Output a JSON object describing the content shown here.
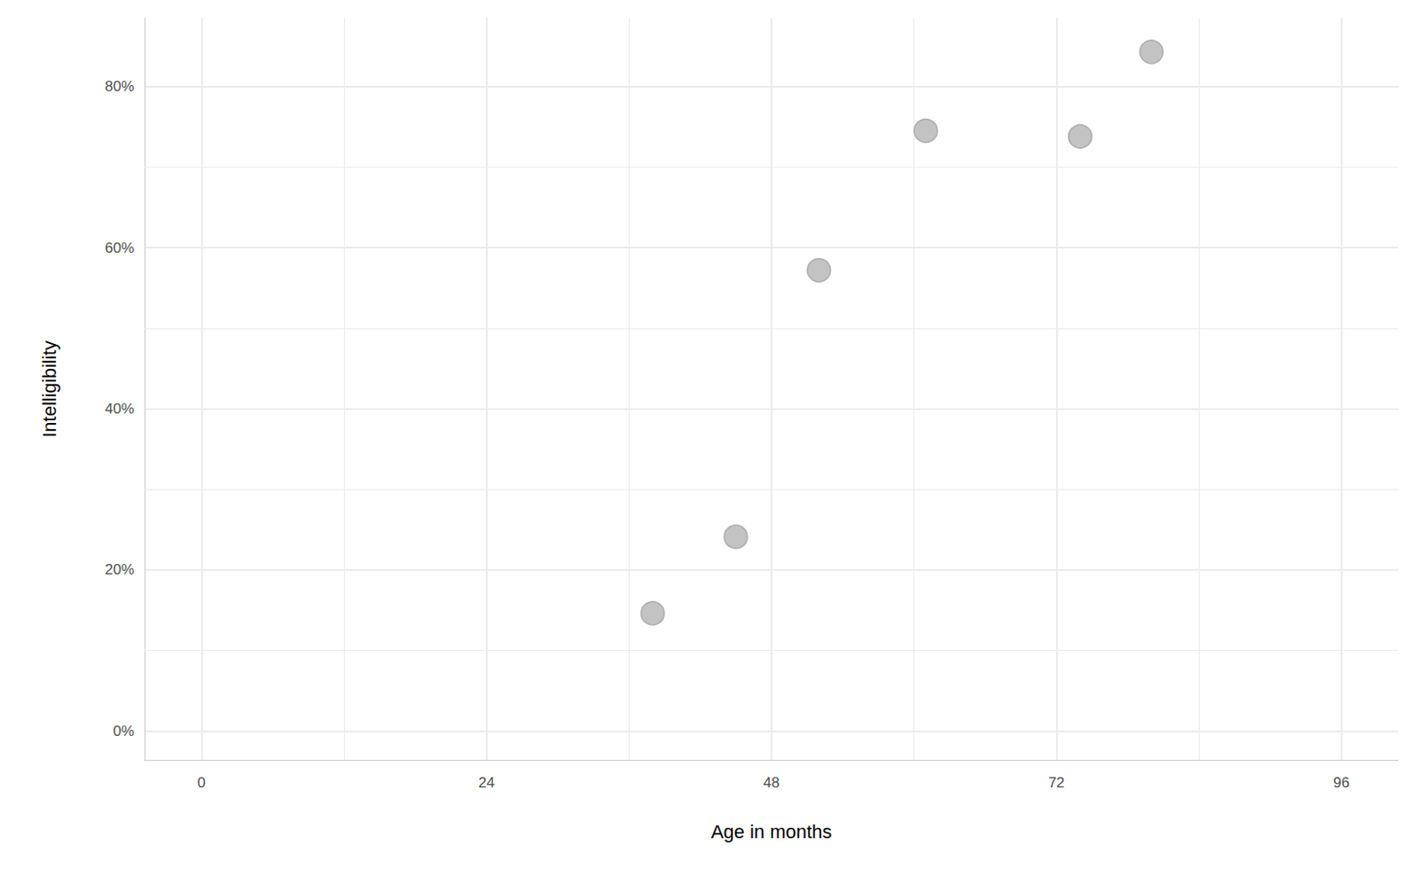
{
  "chart_data": {
    "type": "scatter",
    "x_label": "Age in months",
    "y_label": "Intelligibility",
    "x": [
      38,
      45,
      52,
      61,
      74,
      80
    ],
    "values": [
      14.6,
      24.1,
      57.2,
      74.5,
      73.8,
      84.3
    ],
    "color": "#bdbdbd",
    "marker": "circle",
    "xlim": [
      -4.8,
      100.8
    ],
    "xticks": [
      0,
      24,
      48,
      72,
      96
    ],
    "ylim": [
      -3.6,
      88.5
    ],
    "yticks": [
      {
        "value": 0,
        "label": "0%"
      },
      {
        "value": 20,
        "label": "20%"
      },
      {
        "value": 40,
        "label": "40%"
      },
      {
        "value": 60,
        "label": "60%"
      },
      {
        "value": 80,
        "label": "80%"
      }
    ],
    "grid": true
  }
}
